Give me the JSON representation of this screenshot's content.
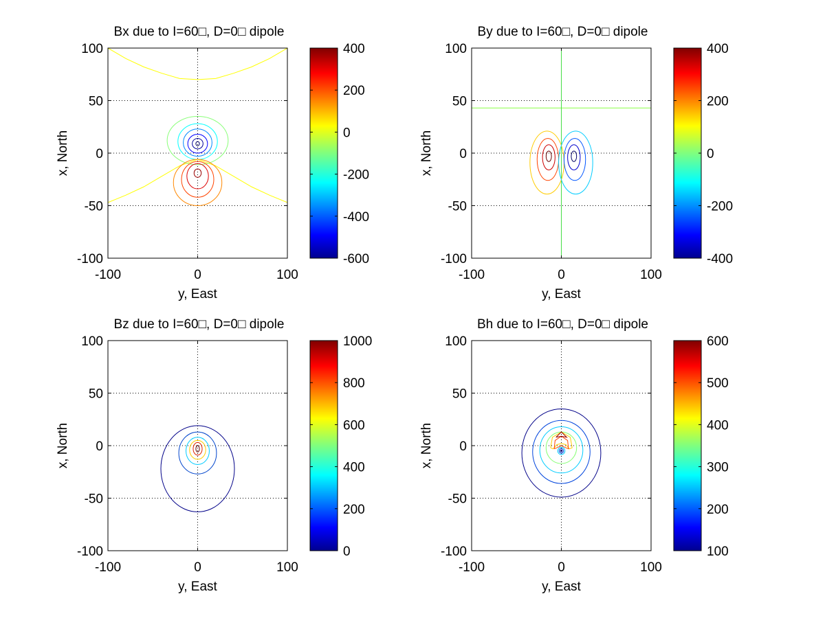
{
  "chart_data": [
    {
      "type": "contour",
      "title": "Bx due to I=60□, D=0□ dipole",
      "xlabel": "y, East",
      "ylabel": "x, North",
      "xlim": [
        -100,
        100
      ],
      "ylim": [
        -100,
        100
      ],
      "xticks": [
        -100,
        0,
        100
      ],
      "yticks": [
        -100,
        -50,
        0,
        50,
        100
      ],
      "grid": "dotted",
      "colorbar": {
        "min": -600,
        "max": 400,
        "ticks": [
          -600,
          -400,
          -200,
          0,
          200,
          400
        ]
      },
      "contours": [
        {
          "type": "curve",
          "name": "level-upper-arch",
          "color": "#ffff00",
          "points": [
            [
              -100,
              100
            ],
            [
              -80,
              90
            ],
            [
              -60,
              82
            ],
            [
              -40,
              76
            ],
            [
              -20,
              71
            ],
            [
              0,
              70
            ],
            [
              20,
              71
            ],
            [
              40,
              76
            ],
            [
              60,
              82
            ],
            [
              80,
              90
            ],
            [
              100,
              100
            ]
          ]
        },
        {
          "type": "curve",
          "name": "level-lower-curve",
          "color": "#ffff00",
          "points": [
            [
              -100,
              -47
            ],
            [
              -80,
              -40
            ],
            [
              -60,
              -32
            ],
            [
              -40,
              -22
            ],
            [
              -20,
              -12
            ],
            [
              0,
              -6
            ],
            [
              20,
              -12
            ],
            [
              40,
              -22
            ],
            [
              60,
              -32
            ],
            [
              80,
              -40
            ],
            [
              100,
              -47
            ]
          ]
        },
        {
          "type": "ellipse",
          "name": "neg-level-1",
          "color": "#88ff77",
          "cx": 0,
          "cy": 12,
          "rx": 34,
          "ry": 23
        },
        {
          "type": "ellipse",
          "name": "neg-level-2",
          "color": "#00ffff",
          "cx": 0,
          "cy": 11,
          "rx": 22,
          "ry": 17
        },
        {
          "type": "ellipse",
          "name": "neg-level-3",
          "color": "#0088ff",
          "cx": 0,
          "cy": 10,
          "rx": 16,
          "ry": 13
        },
        {
          "type": "ellipse",
          "name": "neg-level-4",
          "color": "#0000ff",
          "cx": 0,
          "cy": 9,
          "rx": 11,
          "ry": 9
        },
        {
          "type": "ellipse",
          "name": "neg-level-5",
          "color": "#000099",
          "cx": 0,
          "cy": 9,
          "rx": 6,
          "ry": 5
        },
        {
          "type": "ellipse",
          "name": "neg-level-6",
          "color": "#000066",
          "cx": 0,
          "cy": 9,
          "rx": 2,
          "ry": 2
        },
        {
          "type": "ellipse",
          "name": "pos-level-1",
          "color": "#ff8800",
          "cx": 0,
          "cy": -28,
          "rx": 27,
          "ry": 22
        },
        {
          "type": "ellipse",
          "name": "pos-level-2",
          "color": "#ff4400",
          "cx": 0,
          "cy": -25,
          "rx": 18,
          "ry": 17
        },
        {
          "type": "ellipse",
          "name": "pos-level-3",
          "color": "#dd0000",
          "cx": 0,
          "cy": -22,
          "rx": 12,
          "ry": 12
        },
        {
          "type": "ellipse",
          "name": "pos-level-4",
          "color": "#990000",
          "cx": 0,
          "cy": -19,
          "rx": 4,
          "ry": 4
        }
      ]
    },
    {
      "type": "contour",
      "title": "By due to I=60□, D=0□ dipole",
      "xlabel": "y, East",
      "ylabel": "x, North",
      "xlim": [
        -100,
        100
      ],
      "ylim": [
        -100,
        100
      ],
      "xticks": [
        -100,
        0,
        100
      ],
      "yticks": [
        -100,
        -50,
        0,
        50,
        100
      ],
      "grid": "dotted",
      "colorbar": {
        "min": -400,
        "max": 400,
        "ticks": [
          -400,
          -200,
          0,
          200,
          400
        ]
      },
      "contours": [
        {
          "type": "curve",
          "name": "zero-level-horizontal",
          "color": "#88ff44",
          "points": [
            [
              -100,
              43
            ],
            [
              100,
              43
            ]
          ]
        },
        {
          "type": "curve",
          "name": "zero-level-vertical",
          "color": "#44dd44",
          "points": [
            [
              0,
              100
            ],
            [
              0,
              -100
            ]
          ]
        },
        {
          "type": "ellipse",
          "name": "pos-level-1",
          "color": "#ffcc00",
          "cx": -16,
          "cy": -9,
          "rx": 19,
          "ry": 30
        },
        {
          "type": "ellipse",
          "name": "pos-level-2",
          "color": "#ff4400",
          "cx": -15,
          "cy": -6,
          "rx": 12,
          "ry": 20
        },
        {
          "type": "ellipse",
          "name": "pos-level-3",
          "color": "#cc0000",
          "cx": -14,
          "cy": -4,
          "rx": 7,
          "ry": 12
        },
        {
          "type": "ellipse",
          "name": "pos-level-4",
          "color": "#660000",
          "cx": -14,
          "cy": -3,
          "rx": 3,
          "ry": 5
        },
        {
          "type": "ellipse",
          "name": "neg-level-1",
          "color": "#00ccff",
          "cx": 16,
          "cy": -9,
          "rx": 19,
          "ry": 30
        },
        {
          "type": "ellipse",
          "name": "neg-level-2",
          "color": "#0055ff",
          "cx": 15,
          "cy": -6,
          "rx": 12,
          "ry": 20
        },
        {
          "type": "ellipse",
          "name": "neg-level-3",
          "color": "#0000cc",
          "cx": 14,
          "cy": -4,
          "rx": 7,
          "ry": 12
        },
        {
          "type": "ellipse",
          "name": "neg-level-4",
          "color": "#000066",
          "cx": 14,
          "cy": -3,
          "rx": 3,
          "ry": 5
        }
      ]
    },
    {
      "type": "contour",
      "title": "Bz due to I=60□, D=0□ dipole",
      "xlabel": "y, East",
      "ylabel": "x, North",
      "xlim": [
        -100,
        100
      ],
      "ylim": [
        -100,
        100
      ],
      "xticks": [
        -100,
        0,
        100
      ],
      "yticks": [
        -100,
        -50,
        0,
        50,
        100
      ],
      "grid": "dotted",
      "colorbar": {
        "min": 0,
        "max": 1000,
        "ticks": [
          0,
          200,
          400,
          600,
          800,
          1000
        ]
      },
      "contours": [
        {
          "type": "ellipse",
          "name": "level-1",
          "color": "#000088",
          "cx": 0,
          "cy": -22,
          "rx": 41,
          "ry": 41
        },
        {
          "type": "ellipse",
          "name": "level-2",
          "color": "#0044cc",
          "cx": 0,
          "cy": -7,
          "rx": 21,
          "ry": 20
        },
        {
          "type": "ellipse",
          "name": "level-3",
          "color": "#00ccff",
          "cx": 0,
          "cy": -5,
          "rx": 13,
          "ry": 13
        },
        {
          "type": "ellipse",
          "name": "level-4",
          "color": "#ffcc00",
          "cx": 0,
          "cy": -4,
          "rx": 9,
          "ry": 9
        },
        {
          "type": "ellipse",
          "name": "level-5",
          "color": "#dd2200",
          "cx": 0,
          "cy": -3,
          "rx": 5,
          "ry": 6
        },
        {
          "type": "ellipse",
          "name": "level-6",
          "color": "#660000",
          "cx": 0,
          "cy": -3,
          "rx": 2,
          "ry": 3
        }
      ]
    },
    {
      "type": "contour",
      "title": "Bh due to I=60□, D=0□ dipole",
      "xlabel": "y, East",
      "ylabel": "x, North",
      "xlim": [
        -100,
        100
      ],
      "ylim": [
        -100,
        100
      ],
      "xticks": [
        -100,
        0,
        100
      ],
      "yticks": [
        -100,
        -50,
        0,
        50,
        100
      ],
      "grid": "dotted",
      "colorbar": {
        "min": 100,
        "max": 600,
        "ticks": [
          100,
          200,
          300,
          400,
          500,
          600
        ]
      },
      "contours": [
        {
          "type": "ellipse",
          "name": "level-1",
          "color": "#000088",
          "cx": 0,
          "cy": -7,
          "rx": 44,
          "ry": 42
        },
        {
          "type": "ellipse",
          "name": "level-2",
          "color": "#0044dd",
          "cx": 0,
          "cy": -6,
          "rx": 32,
          "ry": 30
        },
        {
          "type": "ellipse",
          "name": "level-3",
          "color": "#00ccff",
          "cx": 0,
          "cy": -4,
          "rx": 24,
          "ry": 22
        },
        {
          "type": "ellipse",
          "name": "level-4",
          "color": "#88ff77",
          "cx": 0,
          "cy": -2,
          "rx": 17,
          "ry": 15
        },
        {
          "type": "curve",
          "name": "level-5-horseshoe",
          "color": "#ffcc00",
          "points": [
            [
              -12,
              -2
            ],
            [
              -10,
              8
            ],
            [
              0,
              13
            ],
            [
              10,
              8
            ],
            [
              12,
              -2
            ],
            [
              9,
              -3
            ],
            [
              5,
              1
            ],
            [
              0,
              2
            ],
            [
              -5,
              1
            ],
            [
              -9,
              -3
            ],
            [
              -12,
              -2
            ]
          ]
        },
        {
          "type": "curve",
          "name": "level-6-horseshoe",
          "color": "#ff4400",
          "points": [
            [
              -8,
              -3
            ],
            [
              -7,
              5
            ],
            [
              0,
              9
            ],
            [
              7,
              5
            ],
            [
              8,
              -3
            ],
            [
              5,
              -2
            ],
            [
              0,
              0
            ],
            [
              -5,
              -2
            ],
            [
              -8,
              -3
            ]
          ]
        },
        {
          "type": "curve",
          "name": "level-7-cap",
          "color": "#990000",
          "points": [
            [
              -6,
              8
            ],
            [
              0,
              13
            ],
            [
              6,
              8
            ],
            [
              0,
              9
            ],
            [
              -6,
              8
            ]
          ]
        },
        {
          "type": "ellipse",
          "name": "min-ring-1",
          "color": "#00ccff",
          "cx": 0,
          "cy": -5,
          "rx": 4,
          "ry": 3.5
        },
        {
          "type": "ellipse",
          "name": "min-ring-2",
          "color": "#0044dd",
          "cx": 0,
          "cy": -5,
          "rx": 2.5,
          "ry": 2.2
        },
        {
          "type": "ellipse",
          "name": "min-ring-3",
          "color": "#000088",
          "cx": 0,
          "cy": -5,
          "rx": 1,
          "ry": 1
        }
      ]
    }
  ]
}
